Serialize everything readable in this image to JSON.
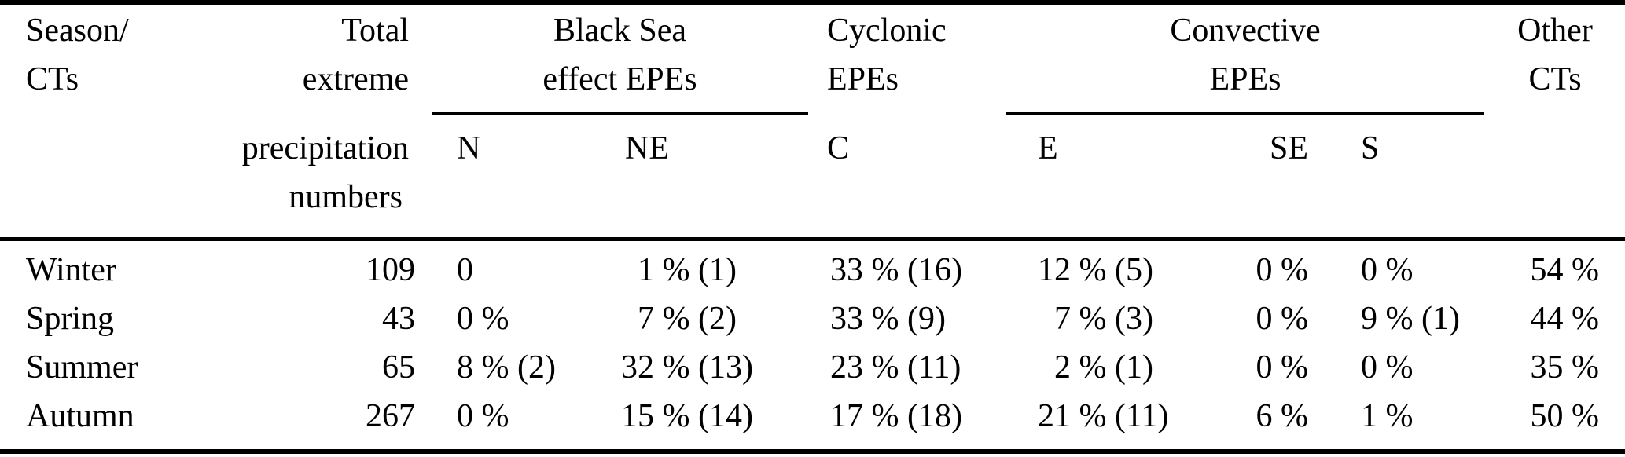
{
  "table": {
    "group_headers": {
      "season": [
        "Season/",
        "CTs"
      ],
      "total": [
        "Total",
        "extreme",
        "precipitation",
        "numbers"
      ],
      "black_sea": [
        "Black Sea",
        "effect EPEs"
      ],
      "cyclonic": [
        "Cyclonic",
        "EPEs"
      ],
      "convective": [
        "Convective",
        "EPEs"
      ],
      "other": [
        "Other",
        "CTs"
      ]
    },
    "sub_headers": {
      "n": "N",
      "ne": "NE",
      "c": "C",
      "e": "E",
      "se": "SE",
      "s": "S"
    },
    "rows": [
      {
        "season": "Winter",
        "total": "109",
        "n": "0",
        "ne": "1 % (1)",
        "c": "33 % (16)",
        "e": "12 % (5)",
        "se": "0 %",
        "s": "0 %",
        "other": "54 %"
      },
      {
        "season": "Spring",
        "total": "43",
        "n": "0 %",
        "ne": "7 % (2)",
        "c": "33 % (9)",
        "e": "7 % (3)",
        "se": "0 %",
        "s": "9 % (1)",
        "other": "44 %"
      },
      {
        "season": "Summer",
        "total": "65",
        "n": "8 % (2)",
        "ne": "32 % (13)",
        "c": "23 % (11)",
        "e": "2 % (1)",
        "se": "0 %",
        "s": "0 %",
        "other": "35 %"
      },
      {
        "season": "Autumn",
        "total": "267",
        "n": "0 %",
        "ne": "15 % (14)",
        "c": "17 % (18)",
        "e": "21 % (11)",
        "se": "6 %",
        "s": "1 %",
        "other": "50 %"
      }
    ],
    "colors": {
      "text": "#000000",
      "background": "#ffffff",
      "rule": "#000000"
    }
  }
}
